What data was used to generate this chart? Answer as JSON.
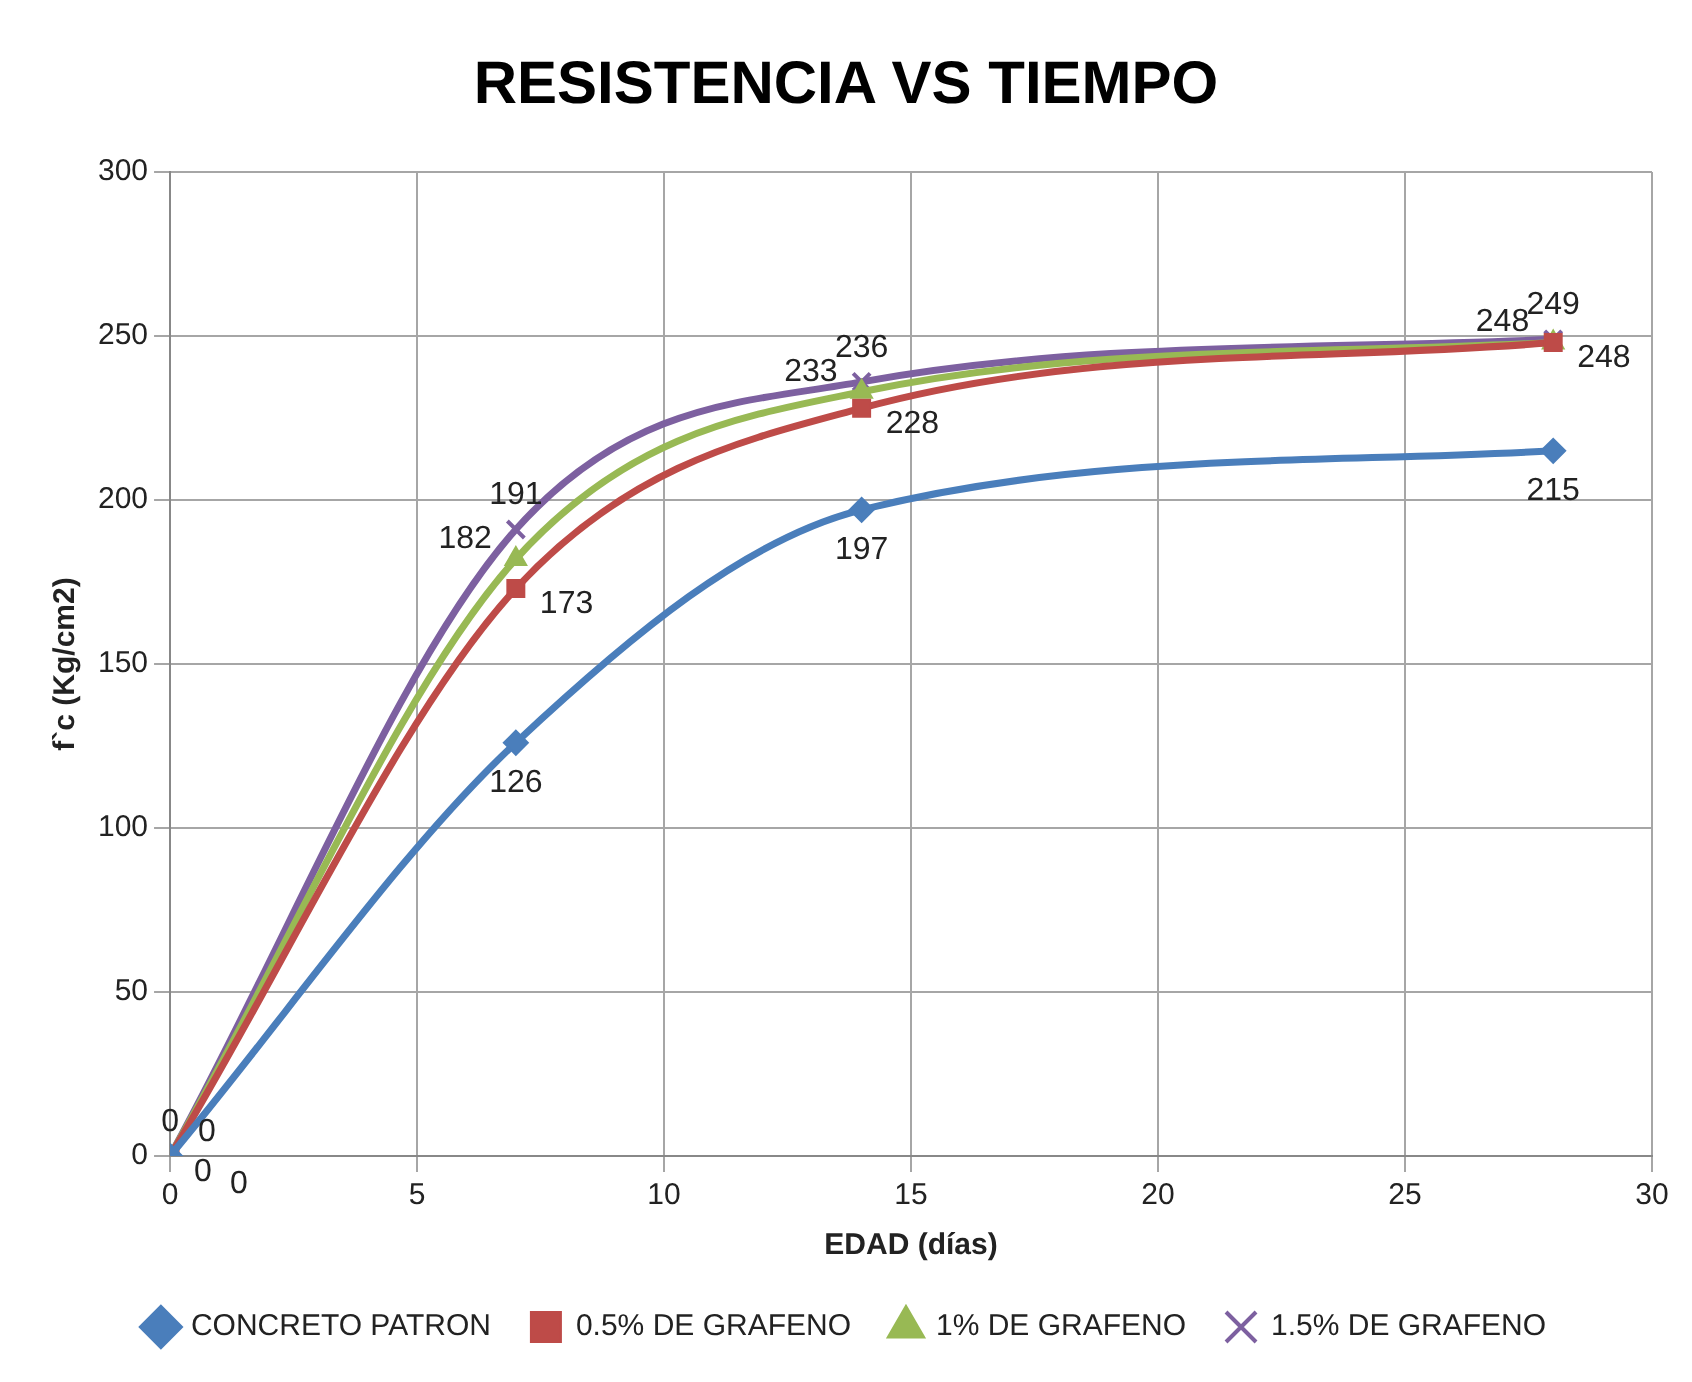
{
  "chart_data": {
    "type": "line",
    "title": "RESISTENCIA VS TIEMPO",
    "xlabel": "EDAD (días)",
    "ylabel": "f`c (Kg/cm2)",
    "x": [
      0,
      7,
      14,
      28
    ],
    "series": [
      {
        "name": "CONCRETO PATRON",
        "color": "#4a7ebb",
        "marker": "diamond",
        "values": [
          0,
          126,
          197,
          215
        ]
      },
      {
        "name": "0.5% DE GRAFENO",
        "color": "#be4b48",
        "marker": "square",
        "values": [
          0,
          173,
          228,
          248
        ]
      },
      {
        "name": "1% DE GRAFENO",
        "color": "#98b954",
        "marker": "triangle",
        "values": [
          0,
          182,
          233,
          248
        ]
      },
      {
        "name": "1.5% DE GRAFENO",
        "color": "#7d60a0",
        "marker": "cross",
        "values": [
          0,
          191,
          236,
          249
        ]
      }
    ],
    "xlim": [
      0,
      30
    ],
    "xticks": [
      0,
      5,
      10,
      15,
      20,
      25,
      30
    ],
    "ylim": [
      0,
      300
    ],
    "yticks": [
      0,
      50,
      100,
      150,
      200,
      250,
      300
    ],
    "grid": true,
    "legend": "bottom",
    "data_labels": true,
    "line_style": "solid"
  }
}
